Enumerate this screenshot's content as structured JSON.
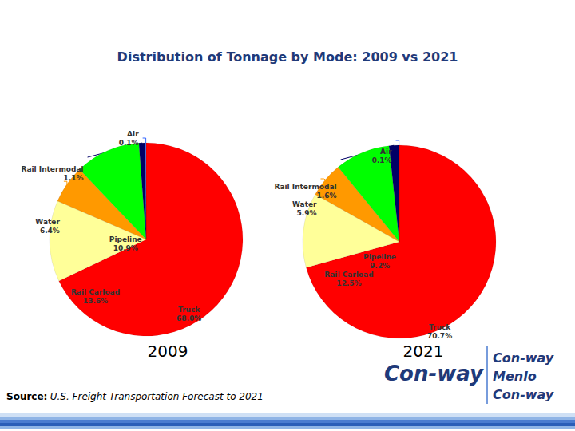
{
  "title": "Distribution of Tonnage by Mode: 2009 vs 2021",
  "chart_data": [
    {
      "type": "pie",
      "title": "2009",
      "categories": [
        "Truck",
        "Rail Carload",
        "Water",
        "Pipeline",
        "Rail Intermodal",
        "Air"
      ],
      "values": [
        68.0,
        13.6,
        6.4,
        10.9,
        1.1,
        0.1
      ],
      "value_labels": [
        "68.0%",
        "13.6%",
        "6.4%",
        "10.9%",
        "1.1%",
        "0.1%"
      ],
      "colors": [
        "#ff0000",
        "#ffff99",
        "#ff9900",
        "#00ff00",
        "#000066",
        "#3366ff"
      ],
      "data_labels": true
    },
    {
      "type": "pie",
      "title": "2021",
      "categories": [
        "Truck",
        "Rail Carload",
        "Water",
        "Pipeline",
        "Rail Intermodal",
        "Air"
      ],
      "values": [
        70.7,
        12.5,
        5.9,
        9.2,
        1.6,
        0.1
      ],
      "value_labels": [
        "70.7%",
        "12.5%",
        "5.9%",
        "9.2%",
        "1.6%",
        "0.1%"
      ],
      "colors": [
        "#ff0000",
        "#ffff99",
        "#ff9900",
        "#00ff00",
        "#000066",
        "#3366ff"
      ],
      "data_labels": true
    }
  ],
  "source_label": "Source:",
  "source": "U.S. Freight Transportation Forecast to 2021",
  "logo": "Con-way",
  "logos": [
    "Con-way",
    "Menlo",
    "Con-way"
  ]
}
